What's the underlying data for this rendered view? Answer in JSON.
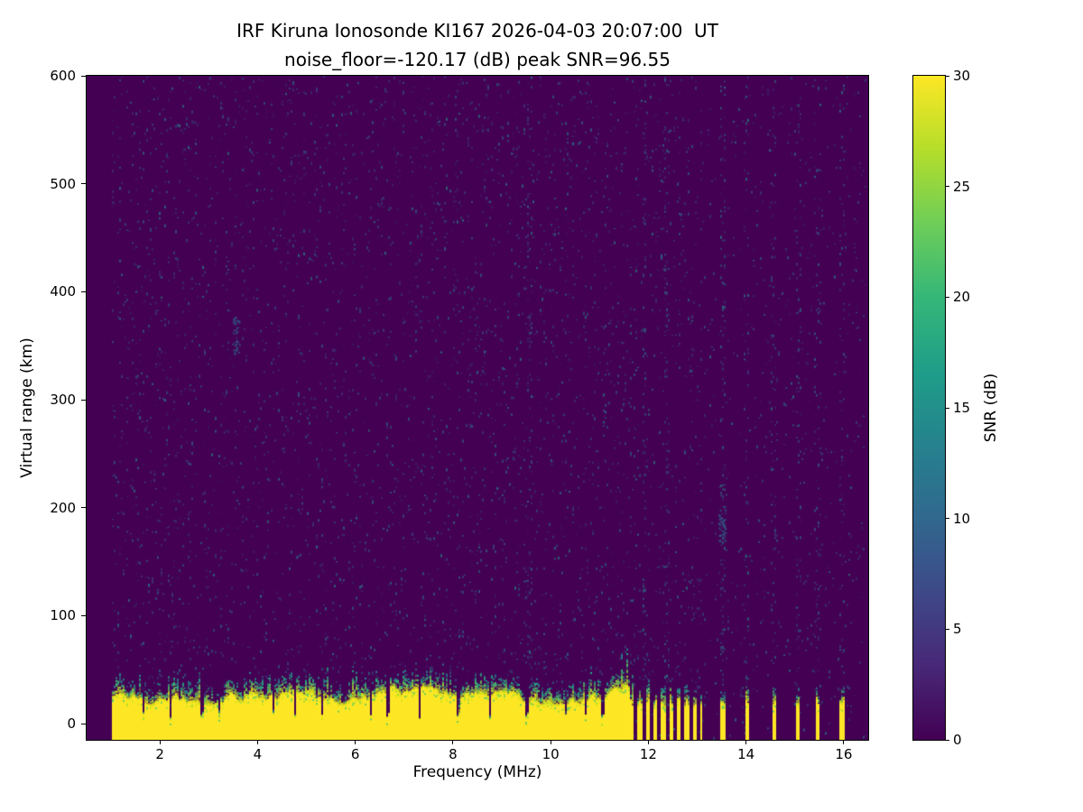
{
  "chart_data": {
    "type": "heatmap",
    "title": "IRF Kiruna Ionosonde KI167 2026-04-03 20:07:00  UT",
    "subtitle": "noise_floor=-120.17 (dB) peak SNR=96.55",
    "station": "KI167",
    "timestamp_ut": "2026-04-03 20:07:00",
    "noise_floor_db": -120.17,
    "peak_snr_db": 96.55,
    "xlabel": "Frequency (MHz)",
    "ylabel": "Virtual range (km)",
    "xlim": [
      0.5,
      16.5
    ],
    "ylim": [
      -15,
      600
    ],
    "xticks": [
      2,
      4,
      6,
      8,
      10,
      12,
      14,
      16
    ],
    "yticks": [
      0,
      100,
      200,
      300,
      400,
      500,
      600
    ],
    "grid": false,
    "legend": "none",
    "colorbar": {
      "label": "SNR (dB)",
      "lim": [
        0,
        30
      ],
      "ticks": [
        0,
        5,
        10,
        15,
        20,
        25,
        30
      ],
      "colormap": "viridis",
      "stops": [
        "#440154",
        "#482878",
        "#3e4989",
        "#31688e",
        "#26828e",
        "#1f9e89",
        "#35b779",
        "#6ece58",
        "#b5de2b",
        "#fde725"
      ]
    },
    "data_extent_mhz": [
      1.0,
      16.45
    ],
    "background": {
      "base_snr_db": 0,
      "speckle_snr_db": [
        3,
        12
      ],
      "noise_streak_freqs_mhz": [
        9.55,
        11.9,
        12.35,
        13.5
      ],
      "quiet_zone_start_mhz": 13.1
    },
    "ground_clutter": {
      "band_bottom_km": -15,
      "band_top_km_range": [
        18,
        36
      ],
      "snr_db": 30,
      "continuous_band_mhz": [
        1.0,
        11.6
      ],
      "striped_band_mhz": [
        11.6,
        13.1
      ],
      "stripe_period_mhz": 0.16,
      "stripe_duty": 0.55,
      "sparse_stripes_mhz": [
        13.5,
        14.0,
        14.55,
        15.05,
        15.45,
        15.95
      ],
      "notch_freqs_mhz": [
        1.65,
        2.2,
        2.85,
        3.2,
        4.3,
        4.75,
        5.3,
        6.3,
        6.65,
        7.3,
        8.1,
        8.75,
        9.5,
        10.3,
        10.7,
        11.05
      ],
      "transition_thickness_km": [
        6,
        22
      ]
    },
    "faint_echoes": [
      {
        "f_mhz": 3.55,
        "range_km": 360
      },
      {
        "f_mhz": 13.5,
        "range_km": 185
      }
    ]
  }
}
